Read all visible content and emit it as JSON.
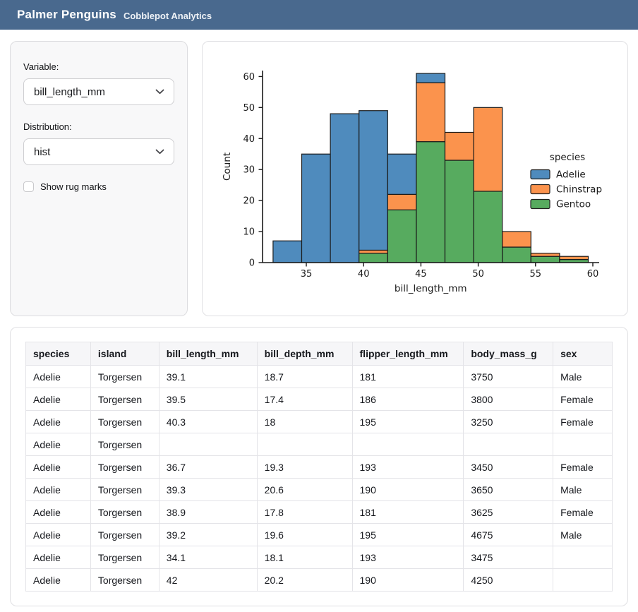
{
  "header": {
    "title": "Palmer Penguins",
    "subtitle": "Cobblepot Analytics"
  },
  "sidebar": {
    "variable_label": "Variable:",
    "variable_value": "bill_length_mm",
    "distribution_label": "Distribution:",
    "distribution_value": "hist",
    "rug_label": "Show rug marks",
    "rug_checked": false
  },
  "colors": {
    "header_bg": "#49698e",
    "adelie": "#4f8bbd",
    "chinstrap": "#fb934d",
    "gentoo": "#57ab5f",
    "bar_edge": "#1a1a1a"
  },
  "chart_data": {
    "type": "bar",
    "subtype": "stacked-histogram",
    "title": "",
    "xlabel": "bill_length_mm",
    "ylabel": "Count",
    "bin_edges": [
      32.1,
      34.6,
      37.1,
      39.6,
      42.1,
      44.6,
      47.1,
      49.6,
      52.1,
      54.6,
      57.1,
      59.6
    ],
    "series": [
      {
        "name": "Adelie",
        "color": "#4f8bbd",
        "values": [
          7,
          35,
          48,
          45,
          13,
          3,
          0,
          0,
          0,
          0,
          0
        ]
      },
      {
        "name": "Chinstrap",
        "color": "#fb934d",
        "values": [
          0,
          0,
          0,
          1,
          5,
          19,
          9,
          27,
          5,
          1,
          1
        ]
      },
      {
        "name": "Gentoo",
        "color": "#57ab5f",
        "values": [
          0,
          0,
          0,
          3,
          17,
          39,
          33,
          23,
          5,
          2,
          1
        ]
      }
    ],
    "stack_order_bottom_to_top": [
      "Gentoo",
      "Chinstrap",
      "Adelie"
    ],
    "bin_totals": [
      7,
      35,
      48,
      49,
      35,
      61,
      42,
      50,
      10,
      3,
      2
    ],
    "x_ticks": [
      35,
      40,
      45,
      50,
      55,
      60
    ],
    "y_ticks": [
      0,
      10,
      20,
      30,
      40,
      50,
      60
    ],
    "xlim": [
      31.5,
      60.8
    ],
    "ylim": [
      0,
      62
    ],
    "grid": false,
    "legend": {
      "title": "species",
      "position": "center-right",
      "entries": [
        "Adelie",
        "Chinstrap",
        "Gentoo"
      ]
    }
  },
  "table": {
    "columns": [
      "species",
      "island",
      "bill_length_mm",
      "bill_depth_mm",
      "flipper_length_mm",
      "body_mass_g",
      "sex"
    ],
    "column_widths_pct": [
      11.06,
      11.66,
      16.71,
      16.23,
      18.99,
      15.26,
      10.09
    ],
    "rows": [
      [
        "Adelie",
        "Torgersen",
        "39.1",
        "18.7",
        "181",
        "3750",
        "Male"
      ],
      [
        "Adelie",
        "Torgersen",
        "39.5",
        "17.4",
        "186",
        "3800",
        "Female"
      ],
      [
        "Adelie",
        "Torgersen",
        "40.3",
        "18",
        "195",
        "3250",
        "Female"
      ],
      [
        "Adelie",
        "Torgersen",
        "",
        "",
        "",
        "",
        ""
      ],
      [
        "Adelie",
        "Torgersen",
        "36.7",
        "19.3",
        "193",
        "3450",
        "Female"
      ],
      [
        "Adelie",
        "Torgersen",
        "39.3",
        "20.6",
        "190",
        "3650",
        "Male"
      ],
      [
        "Adelie",
        "Torgersen",
        "38.9",
        "17.8",
        "181",
        "3625",
        "Female"
      ],
      [
        "Adelie",
        "Torgersen",
        "39.2",
        "19.6",
        "195",
        "4675",
        "Male"
      ],
      [
        "Adelie",
        "Torgersen",
        "34.1",
        "18.1",
        "193",
        "3475",
        ""
      ],
      [
        "Adelie",
        "Torgersen",
        "42",
        "20.2",
        "190",
        "4250",
        ""
      ]
    ]
  }
}
